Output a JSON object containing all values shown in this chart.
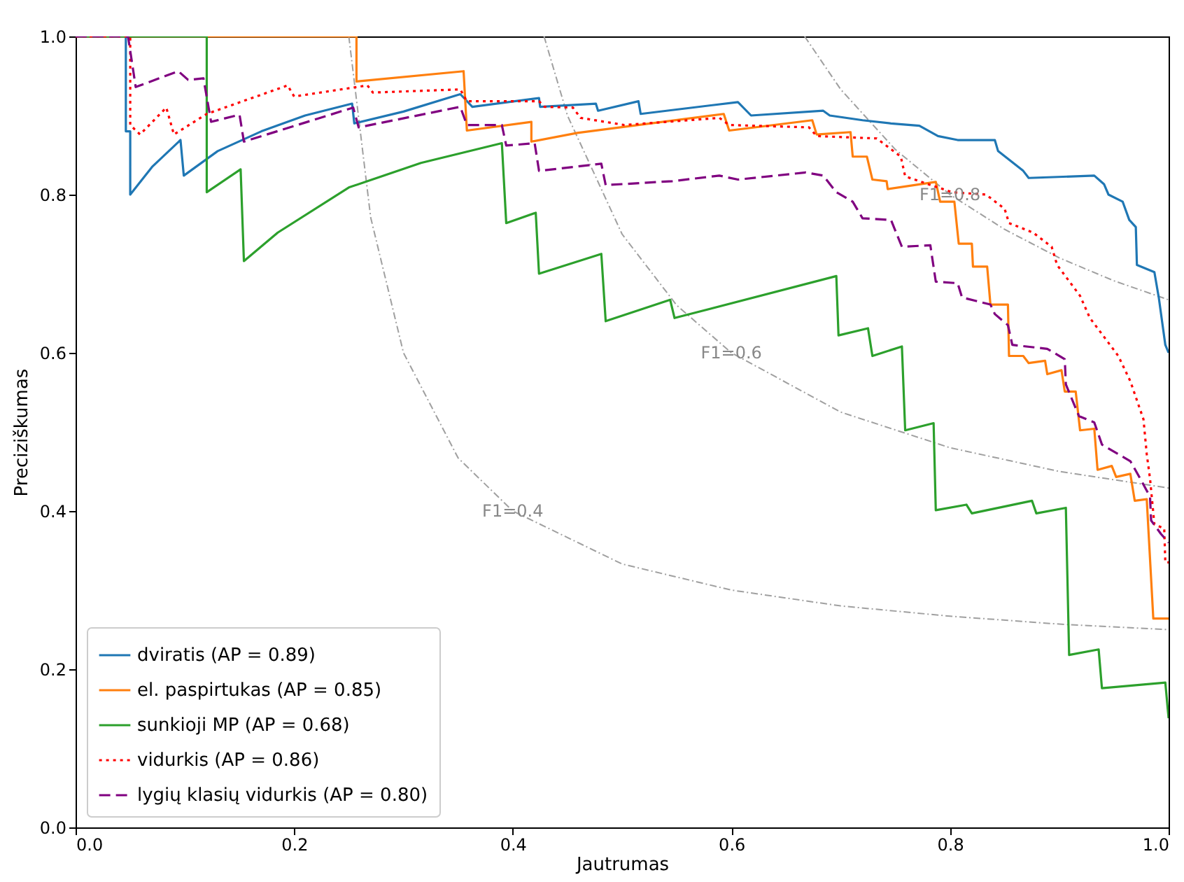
{
  "chart_data": {
    "type": "line",
    "xlabel": "Jautrumas",
    "ylabel": "Preciziškumas",
    "xlim": [
      0,
      1
    ],
    "ylim": [
      0,
      1
    ],
    "xticks": [
      {
        "value": 0,
        "label": "0.0"
      },
      {
        "value": 0.2,
        "label": "0.2"
      },
      {
        "value": 0.4,
        "label": "0.4"
      },
      {
        "value": 0.6,
        "label": "0.6"
      },
      {
        "value": 0.8,
        "label": "0.8"
      },
      {
        "value": 1,
        "label": "1.0"
      }
    ],
    "yticks": [
      {
        "value": 0,
        "label": "0.0"
      },
      {
        "value": 0.2,
        "label": "0.2"
      },
      {
        "value": 0.4,
        "label": "0.4"
      },
      {
        "value": 0.6,
        "label": "0.6"
      },
      {
        "value": 0.8,
        "label": "0.8"
      },
      {
        "value": 1,
        "label": "1.0"
      }
    ],
    "grid": false,
    "legend": "bottom left",
    "marker": "none",
    "series": [
      {
        "color": "#a0a0a0",
        "line_style": "dashed",
        "x": [
          0.667,
          0.7,
          0.75,
          0.8,
          0.85,
          0.9,
          0.95,
          1.0
        ],
        "values": [
          1.0,
          0.933,
          0.857,
          0.8,
          0.756,
          0.72,
          0.691,
          0.667
        ]
      },
      {
        "color": "#a0a0a0",
        "line_style": "dashed",
        "x": [
          0.4286,
          0.45,
          0.5,
          0.55,
          0.6,
          0.7,
          0.8,
          0.9,
          1.0
        ],
        "values": [
          1.0,
          0.9,
          0.75,
          0.66,
          0.6,
          0.525,
          0.48,
          0.45,
          0.429
        ]
      },
      {
        "color": "#a0a0a0",
        "line_style": "dashed",
        "x": [
          0.25,
          0.27,
          0.3,
          0.35,
          0.4,
          0.5,
          0.6,
          0.7,
          0.8,
          0.9,
          1.0
        ],
        "values": [
          1.0,
          0.771,
          0.6,
          0.467,
          0.4,
          0.333,
          0.3,
          0.28,
          0.267,
          0.257,
          0.25
        ]
      },
      {
        "name": "dviratis (AP = 0.89)",
        "color": "#1f77b4",
        "line_style": "solid",
        "x": [
          0,
          0.046,
          0.046,
          0.05,
          0.05,
          0.07,
          0.096,
          0.099,
          0.13,
          0.17,
          0.21,
          0.253,
          0.255,
          0.3,
          0.352,
          0.363,
          0.424,
          0.425,
          0.476,
          0.478,
          0.515,
          0.517,
          0.606,
          0.618,
          0.684,
          0.69,
          0.72,
          0.746,
          0.772,
          0.789,
          0.807,
          0.841,
          0.844,
          0.867,
          0.872,
          0.932,
          0.941,
          0.945,
          0.958,
          0.964,
          0.97,
          0.971,
          0.987,
          0.991,
          0.997,
          1.0
        ],
        "values": [
          1,
          1,
          0.88,
          0.88,
          0.8,
          0.835,
          0.869,
          0.824,
          0.855,
          0.88,
          0.9,
          0.915,
          0.89,
          0.905,
          0.927,
          0.911,
          0.922,
          0.911,
          0.915,
          0.906,
          0.918,
          0.902,
          0.917,
          0.9,
          0.906,
          0.9,
          0.894,
          0.89,
          0.887,
          0.874,
          0.869,
          0.869,
          0.855,
          0.83,
          0.821,
          0.824,
          0.813,
          0.8,
          0.791,
          0.768,
          0.759,
          0.711,
          0.702,
          0.67,
          0.61,
          0.6
        ]
      },
      {
        "name": "el. paspirtukas (AP = 0.85)",
        "color": "#ff7f0e",
        "line_style": "solid",
        "x": [
          0,
          0.257,
          0.257,
          0.355,
          0.358,
          0.417,
          0.417,
          0.459,
          0.593,
          0.598,
          0.674,
          0.678,
          0.709,
          0.711,
          0.724,
          0.729,
          0.742,
          0.743,
          0.787,
          0.791,
          0.804,
          0.808,
          0.82,
          0.821,
          0.834,
          0.837,
          0.853,
          0.854,
          0.867,
          0.872,
          0.887,
          0.889,
          0.902,
          0.905,
          0.915,
          0.919,
          0.932,
          0.935,
          0.948,
          0.952,
          0.965,
          0.969,
          0.98,
          0.986,
          1.0
        ],
        "values": [
          1,
          1,
          0.943,
          0.956,
          0.881,
          0.892,
          0.867,
          0.878,
          0.902,
          0.881,
          0.894,
          0.876,
          0.879,
          0.848,
          0.848,
          0.819,
          0.817,
          0.807,
          0.816,
          0.791,
          0.791,
          0.738,
          0.738,
          0.709,
          0.709,
          0.661,
          0.661,
          0.596,
          0.596,
          0.587,
          0.59,
          0.573,
          0.578,
          0.551,
          0.551,
          0.502,
          0.504,
          0.452,
          0.457,
          0.443,
          0.447,
          0.413,
          0.415,
          0.264,
          0.264
        ]
      },
      {
        "name": "sunkioji MP (AP = 0.68)",
        "color": "#2ca02c",
        "line_style": "solid",
        "x": [
          0,
          0.12,
          0.12,
          0.151,
          0.154,
          0.185,
          0.25,
          0.316,
          0.39,
          0.394,
          0.421,
          0.424,
          0.481,
          0.485,
          0.544,
          0.548,
          0.696,
          0.698,
          0.725,
          0.729,
          0.756,
          0.759,
          0.785,
          0.787,
          0.815,
          0.82,
          0.875,
          0.879,
          0.906,
          0.909,
          0.936,
          0.939,
          0.997,
          1.0
        ],
        "values": [
          1,
          1,
          0.803,
          0.832,
          0.716,
          0.752,
          0.809,
          0.84,
          0.865,
          0.764,
          0.777,
          0.7,
          0.725,
          0.64,
          0.667,
          0.644,
          0.697,
          0.622,
          0.631,
          0.596,
          0.608,
          0.502,
          0.511,
          0.401,
          0.408,
          0.397,
          0.413,
          0.397,
          0.404,
          0.218,
          0.225,
          0.176,
          0.183,
          0.138
        ]
      },
      {
        "name": "vidurkis (AP = 0.86)",
        "color": "#ff0000",
        "line_style": "dotted",
        "x": [
          0,
          0.05,
          0.05,
          0.059,
          0.083,
          0.09,
          0.12,
          0.194,
          0.2,
          0.267,
          0.272,
          0.352,
          0.358,
          0.424,
          0.429,
          0.455,
          0.462,
          0.502,
          0.589,
          0.598,
          0.671,
          0.678,
          0.733,
          0.755,
          0.759,
          0.789,
          0.802,
          0.833,
          0.85,
          0.854,
          0.876,
          0.893,
          0.898,
          0.919,
          0.928,
          0.954,
          0.965,
          0.977,
          0.98,
          0.983,
          0.987,
          0.996,
          0.997,
          1.0
        ],
        "values": [
          1,
          1,
          0.888,
          0.876,
          0.91,
          0.876,
          0.902,
          0.938,
          0.924,
          0.938,
          0.929,
          0.933,
          0.918,
          0.918,
          0.911,
          0.91,
          0.897,
          0.888,
          0.897,
          0.888,
          0.885,
          0.874,
          0.871,
          0.848,
          0.823,
          0.809,
          0.803,
          0.8,
          0.782,
          0.764,
          0.752,
          0.734,
          0.711,
          0.672,
          0.644,
          0.596,
          0.564,
          0.516,
          0.472,
          0.441,
          0.383,
          0.378,
          0.335,
          0.335
        ]
      },
      {
        "name": "lygių klasių vidurkis (AP = 0.80)",
        "color": "#800080",
        "line_style": "dashed",
        "x": [
          0,
          0.048,
          0.055,
          0.094,
          0.103,
          0.117,
          0.124,
          0.15,
          0.154,
          0.254,
          0.259,
          0.352,
          0.358,
          0.39,
          0.394,
          0.42,
          0.424,
          0.481,
          0.485,
          0.546,
          0.589,
          0.606,
          0.668,
          0.684,
          0.696,
          0.711,
          0.72,
          0.746,
          0.756,
          0.782,
          0.787,
          0.807,
          0.811,
          0.837,
          0.841,
          0.853,
          0.857,
          0.889,
          0.905,
          0.906,
          0.918,
          0.932,
          0.939,
          0.965,
          0.974,
          0.983,
          0.984,
          0.993,
          1.0
        ],
        "values": [
          1,
          1,
          0.936,
          0.956,
          0.945,
          0.947,
          0.892,
          0.901,
          0.867,
          0.91,
          0.885,
          0.911,
          0.888,
          0.888,
          0.862,
          0.865,
          0.83,
          0.839,
          0.812,
          0.817,
          0.824,
          0.819,
          0.828,
          0.824,
          0.803,
          0.791,
          0.77,
          0.768,
          0.734,
          0.736,
          0.69,
          0.688,
          0.67,
          0.661,
          0.649,
          0.635,
          0.61,
          0.605,
          0.592,
          0.56,
          0.52,
          0.512,
          0.484,
          0.463,
          0.441,
          0.418,
          0.388,
          0.371,
          0.36
        ]
      }
    ],
    "annotations": [
      "F1=0.8",
      "F1=0.6",
      "F1=0.4"
    ]
  }
}
